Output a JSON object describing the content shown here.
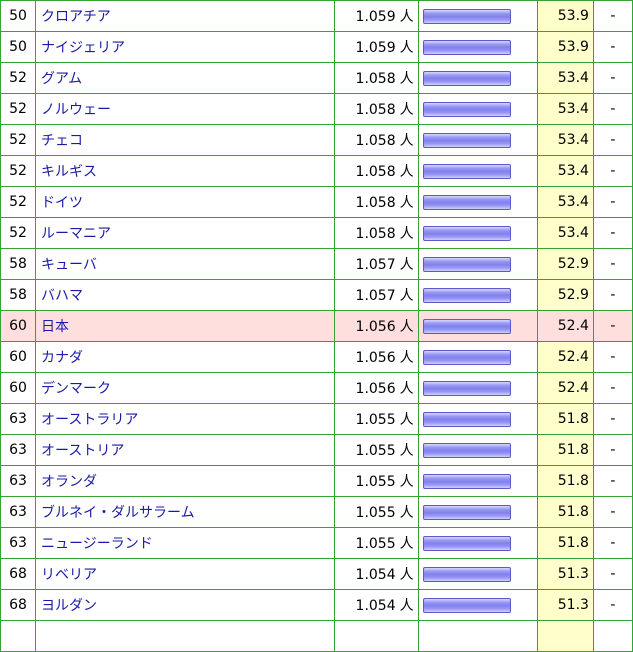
{
  "unit": "人",
  "rows": [
    {
      "rank": "50",
      "name": "クロアチア",
      "value": "1.059",
      "score": "53.9",
      "note": "-"
    },
    {
      "rank": "50",
      "name": "ナイジェリア",
      "value": "1.059",
      "score": "53.9",
      "note": "-"
    },
    {
      "rank": "52",
      "name": "グアム",
      "value": "1.058",
      "score": "53.4",
      "note": "-"
    },
    {
      "rank": "52",
      "name": "ノルウェー",
      "value": "1.058",
      "score": "53.4",
      "note": "-"
    },
    {
      "rank": "52",
      "name": "チェコ",
      "value": "1.058",
      "score": "53.4",
      "note": "-"
    },
    {
      "rank": "52",
      "name": "キルギス",
      "value": "1.058",
      "score": "53.4",
      "note": "-"
    },
    {
      "rank": "52",
      "name": "ドイツ",
      "value": "1.058",
      "score": "53.4",
      "note": "-"
    },
    {
      "rank": "52",
      "name": "ルーマニア",
      "value": "1.058",
      "score": "53.4",
      "note": "-"
    },
    {
      "rank": "58",
      "name": "キューバ",
      "value": "1.057",
      "score": "52.9",
      "note": "-"
    },
    {
      "rank": "58",
      "name": "バハマ",
      "value": "1.057",
      "score": "52.9",
      "note": "-"
    },
    {
      "rank": "60",
      "name": "日本",
      "value": "1.056",
      "score": "52.4",
      "note": "-",
      "highlight": true
    },
    {
      "rank": "60",
      "name": "カナダ",
      "value": "1.056",
      "score": "52.4",
      "note": "-"
    },
    {
      "rank": "60",
      "name": "デンマーク",
      "value": "1.056",
      "score": "52.4",
      "note": "-"
    },
    {
      "rank": "63",
      "name": "オーストラリア",
      "value": "1.055",
      "score": "51.8",
      "note": "-"
    },
    {
      "rank": "63",
      "name": "オーストリア",
      "value": "1.055",
      "score": "51.8",
      "note": "-"
    },
    {
      "rank": "63",
      "name": "オランダ",
      "value": "1.055",
      "score": "51.8",
      "note": "-"
    },
    {
      "rank": "63",
      "name": "ブルネイ・ダルサラーム",
      "value": "1.055",
      "score": "51.8",
      "note": "-"
    },
    {
      "rank": "63",
      "name": "ニュージーランド",
      "value": "1.055",
      "score": "51.8",
      "note": "-"
    },
    {
      "rank": "68",
      "name": "リベリア",
      "value": "1.054",
      "score": "51.3",
      "note": "-"
    },
    {
      "rank": "68",
      "name": "ヨルダン",
      "value": "1.054",
      "score": "51.3",
      "note": "-"
    },
    {
      "rank": "",
      "name": "",
      "value": "",
      "score": "",
      "note": ""
    }
  ]
}
